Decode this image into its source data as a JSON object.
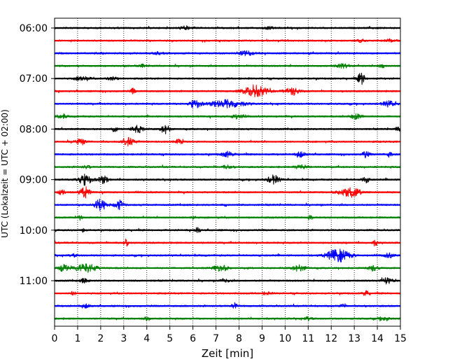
{
  "chart_data": {
    "type": "line",
    "title": "",
    "xlabel": "Zeit  [min]",
    "ylabel": "UTC (Lokalzeit = UTC + 02:00)",
    "xlim": [
      0,
      15
    ],
    "x_ticks": [
      "0",
      "1",
      "2",
      "3",
      "4",
      "5",
      "6",
      "7",
      "8",
      "9",
      "10",
      "11",
      "12",
      "13",
      "14",
      "15"
    ],
    "y_ticks": [
      "06:00",
      "07:00",
      "08:00",
      "09:00",
      "10:00",
      "11:00"
    ],
    "grid_x": true,
    "grid_style": "dotted",
    "rows_start": "06:00",
    "row_interval_min": 15,
    "trace_colors": [
      "#000000",
      "#ff0000",
      "#0000ff",
      "#008000"
    ],
    "series": [
      {
        "label": "06:00",
        "color": "#000000",
        "bursts": [
          [
            5.7,
            0.6,
            0.25
          ],
          [
            9.3,
            0.5,
            0.15
          ]
        ]
      },
      {
        "label": "06:15",
        "color": "#ff0000",
        "bursts": [
          [
            13.3,
            0.3,
            0.2
          ],
          [
            14.6,
            0.5,
            0.25
          ]
        ]
      },
      {
        "label": "06:30",
        "color": "#0000ff",
        "bursts": [
          [
            8.3,
            0.6,
            0.35
          ],
          [
            4.5,
            0.5,
            0.15
          ]
        ]
      },
      {
        "label": "06:45",
        "color": "#008000",
        "bursts": [
          [
            12.5,
            0.6,
            0.3
          ],
          [
            14.2,
            0.3,
            0.35
          ],
          [
            3.8,
            0.2,
            0.25
          ]
        ]
      },
      {
        "label": "07:00",
        "color": "#000000",
        "bursts": [
          [
            1.2,
            0.6,
            0.35
          ],
          [
            13.3,
            0.3,
            0.9
          ],
          [
            2.5,
            0.4,
            0.3
          ]
        ]
      },
      {
        "label": "07:15",
        "color": "#ff0000",
        "bursts": [
          [
            8.7,
            1.0,
            0.85
          ],
          [
            10.3,
            0.6,
            0.65
          ],
          [
            3.4,
            0.2,
            0.4
          ]
        ]
      },
      {
        "label": "07:30",
        "color": "#0000ff",
        "bursts": [
          [
            6.1,
            0.5,
            0.65
          ],
          [
            7.5,
            1.4,
            0.6
          ],
          [
            14.5,
            0.6,
            0.4
          ]
        ]
      },
      {
        "label": "07:45",
        "color": "#008000",
        "bursts": [
          [
            13.1,
            0.5,
            0.4
          ],
          [
            7.9,
            0.6,
            0.3
          ],
          [
            0.3,
            0.4,
            0.3
          ]
        ]
      },
      {
        "label": "08:00",
        "color": "#000000",
        "bursts": [
          [
            3.6,
            0.5,
            0.55
          ],
          [
            4.8,
            0.4,
            0.65
          ],
          [
            2.6,
            0.2,
            0.45
          ],
          [
            14.9,
            0.2,
            0.4
          ]
        ]
      },
      {
        "label": "08:15",
        "color": "#ff0000",
        "bursts": [
          [
            3.2,
            0.6,
            0.6
          ],
          [
            1.1,
            0.5,
            0.4
          ],
          [
            5.4,
            0.4,
            0.35
          ]
        ]
      },
      {
        "label": "08:30",
        "color": "#0000ff",
        "bursts": [
          [
            7.5,
            0.5,
            0.4
          ],
          [
            10.7,
            0.4,
            0.45
          ],
          [
            13.5,
            0.3,
            0.5
          ],
          [
            14.5,
            0.3,
            0.35
          ]
        ]
      },
      {
        "label": "08:45",
        "color": "#008000",
        "bursts": [
          [
            10.7,
            0.5,
            0.35
          ],
          [
            7.5,
            0.4,
            0.25
          ],
          [
            1.4,
            0.3,
            0.25
          ]
        ]
      },
      {
        "label": "09:00",
        "color": "#000000",
        "bursts": [
          [
            1.3,
            0.6,
            0.85
          ],
          [
            2.1,
            0.4,
            0.55
          ],
          [
            9.5,
            0.5,
            0.65
          ],
          [
            13.5,
            0.3,
            0.45
          ]
        ]
      },
      {
        "label": "09:15",
        "color": "#ff0000",
        "bursts": [
          [
            1.3,
            0.4,
            0.9
          ],
          [
            0.3,
            0.3,
            0.4
          ],
          [
            12.8,
            0.9,
            0.75
          ]
        ]
      },
      {
        "label": "09:30",
        "color": "#0000ff",
        "bursts": [
          [
            2.0,
            0.5,
            0.9
          ],
          [
            2.8,
            0.4,
            0.7
          ],
          [
            7.4,
            0.2,
            0.25
          ]
        ]
      },
      {
        "label": "09:45",
        "color": "#008000",
        "bursts": [
          [
            1.1,
            0.2,
            0.35
          ],
          [
            6.0,
            0.2,
            0.3
          ],
          [
            11.1,
            0.2,
            0.3
          ]
        ]
      },
      {
        "label": "10:00",
        "color": "#000000",
        "bursts": [
          [
            6.2,
            0.2,
            0.6
          ],
          [
            1.2,
            0.2,
            0.3
          ]
        ]
      },
      {
        "label": "10:15",
        "color": "#ff0000",
        "bursts": [
          [
            3.1,
            0.2,
            0.5
          ],
          [
            13.9,
            0.2,
            0.45
          ]
        ]
      },
      {
        "label": "10:30",
        "color": "#0000ff",
        "bursts": [
          [
            12.3,
            1.0,
            0.95
          ],
          [
            14.5,
            0.4,
            0.35
          ],
          [
            0.8,
            0.3,
            0.2
          ]
        ]
      },
      {
        "label": "10:45",
        "color": "#008000",
        "bursts": [
          [
            1.4,
            0.8,
            0.7
          ],
          [
            7.2,
            0.6,
            0.5
          ],
          [
            10.6,
            0.6,
            0.45
          ],
          [
            13.8,
            0.4,
            0.4
          ],
          [
            0.4,
            0.5,
            0.5
          ]
        ]
      },
      {
        "label": "11:00",
        "color": "#000000",
        "bursts": [
          [
            14.4,
            0.5,
            0.45
          ],
          [
            1.3,
            0.3,
            0.4
          ],
          [
            7.4,
            0.4,
            0.3
          ]
        ]
      },
      {
        "label": "11:15",
        "color": "#ff0000",
        "bursts": [
          [
            13.5,
            0.3,
            0.35
          ],
          [
            9.2,
            0.3,
            0.25
          ],
          [
            0.8,
            0.2,
            0.3
          ]
        ]
      },
      {
        "label": "11:30",
        "color": "#0000ff",
        "bursts": [
          [
            7.8,
            0.2,
            0.55
          ],
          [
            12.5,
            0.2,
            0.4
          ],
          [
            1.4,
            0.3,
            0.35
          ]
        ]
      },
      {
        "label": "11:45",
        "color": "#008000",
        "bursts": [
          [
            14.3,
            0.4,
            0.35
          ],
          [
            4.0,
            0.3,
            0.25
          ],
          [
            11.0,
            0.3,
            0.25
          ]
        ]
      }
    ]
  }
}
